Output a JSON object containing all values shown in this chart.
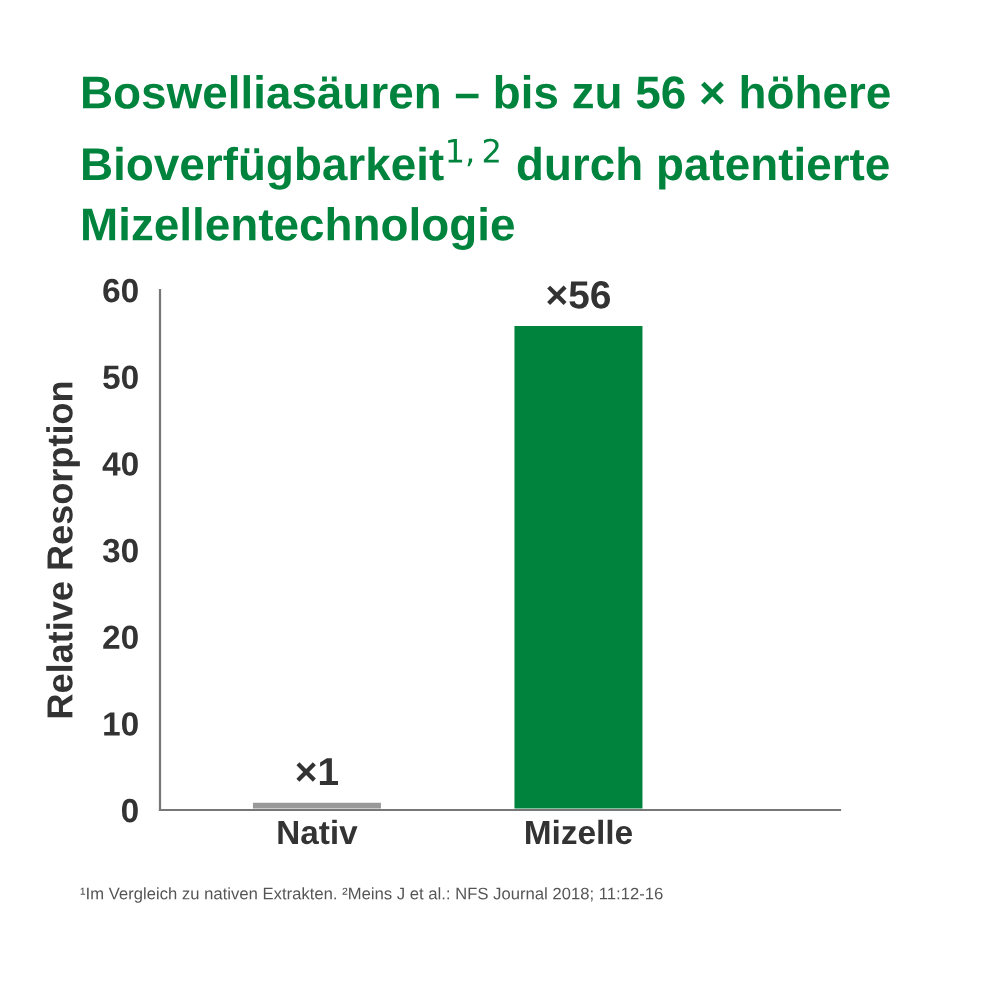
{
  "chart_data": {
    "type": "bar",
    "title": "Boswelliasäuren – bis zu 56 × höhere Bioverfügbarkeit$^{1,2}$ durch patentierte Mizellentechnologie",
    "ylabel": "Relative Resorption",
    "categories": [
      "Nativ",
      "Mizelle"
    ],
    "values": [
      1,
      56
    ],
    "colors": [
      "#999999",
      "#00843d"
    ],
    "value_labels": [
      "×1",
      "×56"
    ],
    "ylim": [
      0,
      60
    ],
    "yticks": [
      0,
      10,
      20,
      30,
      40,
      50,
      60
    ],
    "grid": false,
    "legend": false,
    "annotations": [
      "¹Im Vergleich zu nativen Extrakten. ²Meins J et al.: NFS Journal 2018; 11:12-16"
    ]
  }
}
